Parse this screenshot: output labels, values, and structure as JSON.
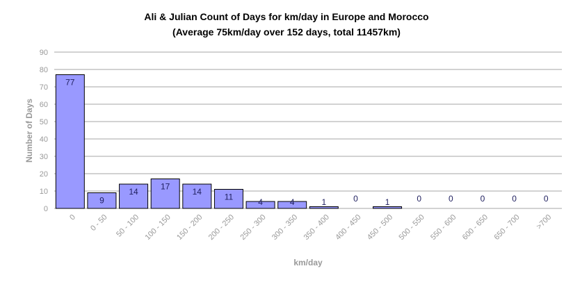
{
  "chart_data": {
    "type": "bar",
    "title": "Ali & Julian Count of Days for km/day in Europe and Morocco",
    "subtitle": "(Average 75km/day over 152 days, total 11457km)",
    "xlabel": "km/day",
    "ylabel": "Number of Days",
    "categories": [
      "0",
      "0 - 50",
      "50 - 100",
      "100 - 150",
      "150 - 200",
      "200 - 250",
      "250 - 300",
      "300 - 350",
      "350 - 400",
      "400 - 450",
      "450 - 500",
      "500 - 550",
      "550 - 600",
      "600 - 650",
      "650 - 700",
      ">700"
    ],
    "values": [
      77,
      9,
      14,
      17,
      14,
      11,
      4,
      4,
      1,
      0,
      1,
      0,
      0,
      0,
      0,
      0
    ],
    "ylim": [
      0,
      90
    ],
    "yticks": [
      0,
      10,
      20,
      30,
      40,
      50,
      60,
      70,
      80,
      90
    ],
    "grid": true,
    "legend": "none",
    "colors": {
      "bar_fill": "#9999ff",
      "bar_stroke": "#000000",
      "grid": "#a6a6a6",
      "axis_text": "#999999"
    }
  }
}
